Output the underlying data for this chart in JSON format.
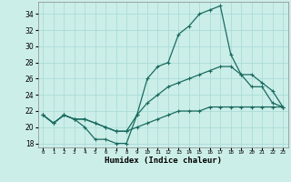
{
  "title": "",
  "xlabel": "Humidex (Indice chaleur)",
  "background_color": "#cceee8",
  "grid_color": "#aaddd8",
  "line_color": "#1a6b60",
  "xlim": [
    -0.5,
    23.5
  ],
  "ylim": [
    17.5,
    35.5
  ],
  "yticks": [
    18,
    20,
    22,
    24,
    26,
    28,
    30,
    32,
    34
  ],
  "xticks": [
    0,
    1,
    2,
    3,
    4,
    5,
    6,
    7,
    8,
    9,
    10,
    11,
    12,
    13,
    14,
    15,
    16,
    17,
    18,
    19,
    20,
    21,
    22,
    23
  ],
  "line1_x": [
    0,
    1,
    2,
    3,
    4,
    5,
    6,
    7,
    8,
    9,
    10,
    11,
    12,
    13,
    14,
    15,
    16,
    17,
    18,
    19,
    20,
    21,
    22,
    23
  ],
  "line1_y": [
    21.5,
    20.5,
    21.5,
    21.0,
    20.0,
    18.5,
    18.5,
    18.0,
    18.0,
    21.5,
    26.0,
    27.5,
    28.0,
    31.5,
    32.5,
    34.0,
    34.5,
    35.0,
    29.0,
    26.5,
    25.0,
    25.0,
    23.0,
    22.5
  ],
  "line2_x": [
    0,
    1,
    2,
    3,
    4,
    5,
    6,
    7,
    8,
    9,
    10,
    11,
    12,
    13,
    14,
    15,
    16,
    17,
    18,
    19,
    20,
    21,
    22,
    23
  ],
  "line2_y": [
    21.5,
    20.5,
    21.5,
    21.0,
    21.0,
    20.5,
    20.0,
    19.5,
    19.5,
    21.5,
    23.0,
    24.0,
    25.0,
    25.5,
    26.0,
    26.5,
    27.0,
    27.5,
    27.5,
    26.5,
    26.5,
    25.5,
    24.5,
    22.5
  ],
  "line3_x": [
    0,
    1,
    2,
    3,
    4,
    5,
    6,
    7,
    8,
    9,
    10,
    11,
    12,
    13,
    14,
    15,
    16,
    17,
    18,
    19,
    20,
    21,
    22,
    23
  ],
  "line3_y": [
    21.5,
    20.5,
    21.5,
    21.0,
    21.0,
    20.5,
    20.0,
    19.5,
    19.5,
    20.0,
    20.5,
    21.0,
    21.5,
    22.0,
    22.0,
    22.0,
    22.5,
    22.5,
    22.5,
    22.5,
    22.5,
    22.5,
    22.5,
    22.5
  ],
  "markersize": 3,
  "linewidth": 0.9
}
